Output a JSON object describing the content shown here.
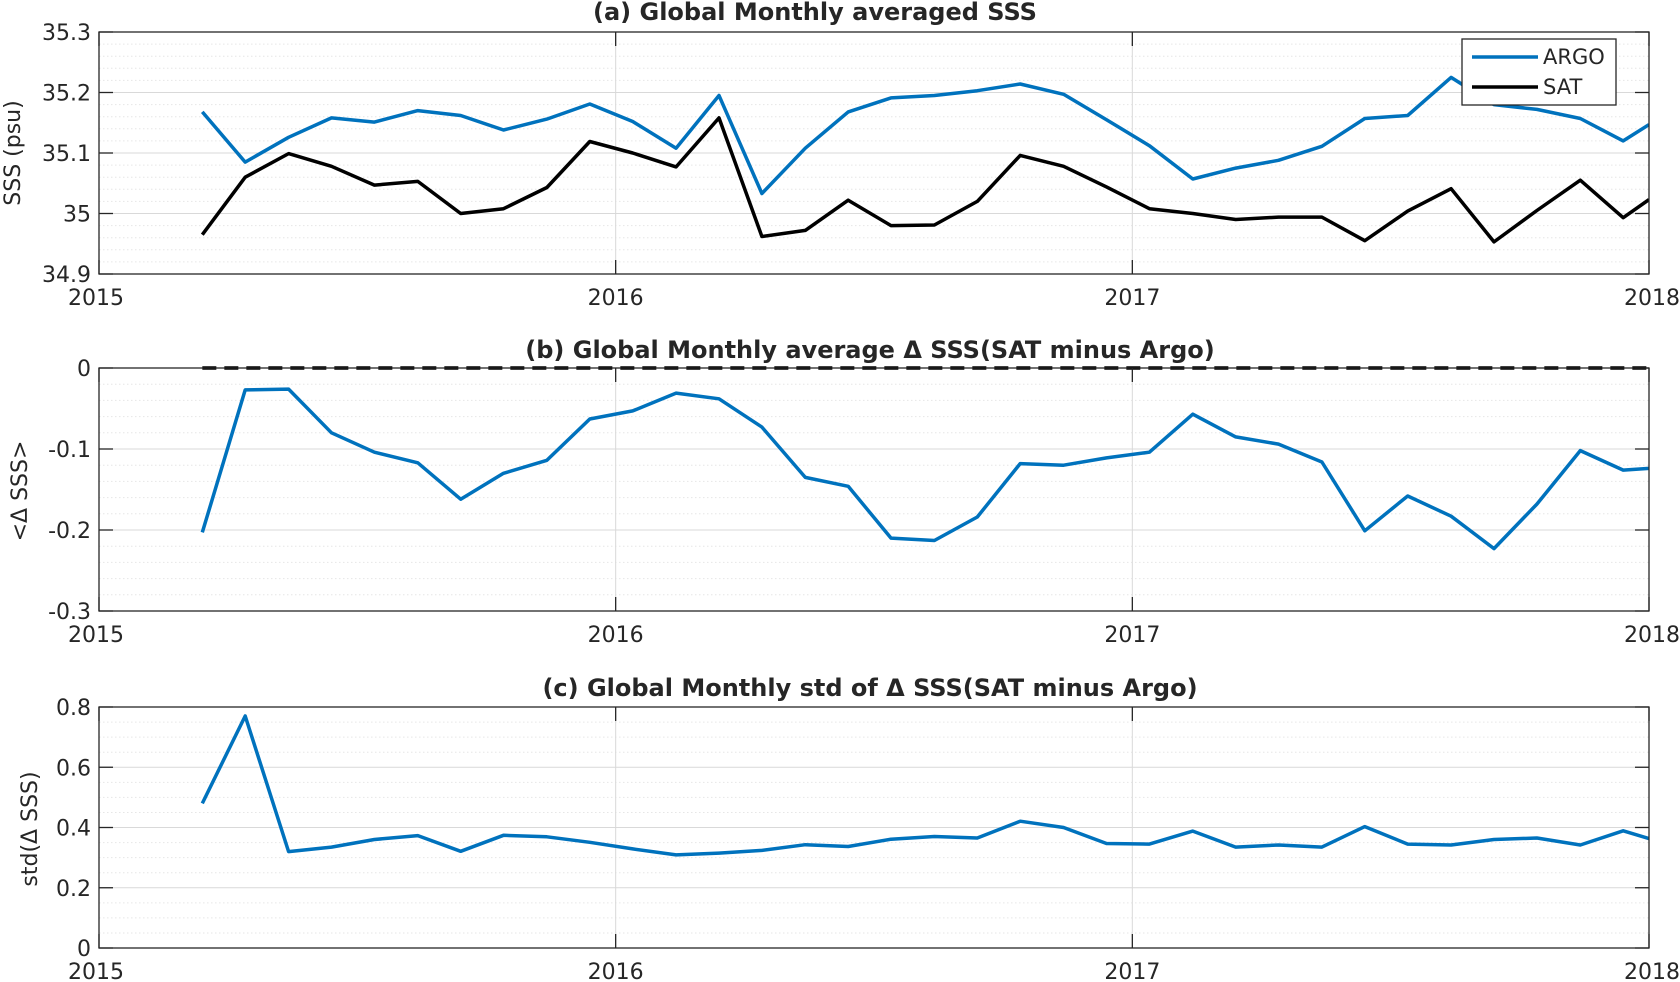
{
  "charts": [
    {
      "title": "(a) Global Monthly averaged SSS",
      "ylabel": "SSS (psu)",
      "ytick_labels": [
        "34.9",
        "35",
        "35.1",
        "35.2",
        "35.3"
      ],
      "xtick_labels": [
        "2015",
        "2016",
        "2017",
        "2018"
      ],
      "legend": [
        "ARGO",
        "SAT"
      ]
    },
    {
      "title": "(b) Global Monthly average Δ SSS(SAT minus Argo)",
      "ylabel": "<Δ SSS>",
      "ytick_labels": [
        "-0.3",
        "-0.2",
        "-0.1",
        "0"
      ],
      "xtick_labels": [
        "2015",
        "2016",
        "2017",
        "2018"
      ]
    },
    {
      "title": "(c) Global Monthly std of Δ SSS(SAT minus Argo)",
      "ylabel": "std(Δ SSS)",
      "ytick_labels": [
        "0",
        "0.2",
        "0.4",
        "0.6",
        "0.8"
      ],
      "xtick_labels": [
        "2015",
        "2016",
        "2017",
        "2018"
      ]
    }
  ],
  "colors": {
    "argo": "#0072bd",
    "sat": "#000000",
    "axis": "#262626",
    "grid_major": "#d9d9d9",
    "grid_minor": "#e6e6e6"
  },
  "chart_data": [
    {
      "type": "line",
      "title": "(a) Global Monthly averaged SSS",
      "xlabel": "",
      "ylabel": "SSS (psu)",
      "xlim": [
        2015,
        2018
      ],
      "ylim": [
        34.9,
        35.3
      ],
      "yticks": [
        34.9,
        35,
        35.1,
        35.2,
        35.3
      ],
      "xticks": [
        2015,
        2016,
        2017,
        2018
      ],
      "grid": true,
      "legend_position": "top-right",
      "x": [
        2015.2,
        2015.283,
        2015.367,
        2015.45,
        2015.533,
        2015.617,
        2015.7,
        2015.783,
        2015.867,
        2015.95,
        2016.033,
        2016.117,
        2016.2,
        2016.283,
        2016.367,
        2016.45,
        2016.533,
        2016.617,
        2016.7,
        2016.783,
        2016.867,
        2016.95,
        2017.033,
        2017.117,
        2017.2,
        2017.283,
        2017.367,
        2017.45,
        2017.533,
        2017.617,
        2017.7,
        2017.783,
        2017.867,
        2017.95,
        2018.0
      ],
      "series": [
        {
          "name": "ARGO",
          "color": "#0072bd",
          "values": [
            35.168,
            35.085,
            35.126,
            35.158,
            35.151,
            35.17,
            35.162,
            35.138,
            35.156,
            35.181,
            35.152,
            35.108,
            35.195,
            35.033,
            35.108,
            35.168,
            35.191,
            35.195,
            35.203,
            35.214,
            35.197,
            35.155,
            35.112,
            35.057,
            35.075,
            35.088,
            35.111,
            35.157,
            35.162,
            35.225,
            35.18,
            35.172,
            35.157,
            35.12,
            35.147
          ]
        },
        {
          "name": "SAT",
          "color": "#000000",
          "values": [
            34.965,
            35.06,
            35.099,
            35.078,
            35.047,
            35.053,
            35.0,
            35.008,
            35.043,
            35.119,
            35.1,
            35.077,
            35.158,
            34.962,
            34.972,
            35.022,
            34.98,
            34.981,
            35.02,
            35.096,
            35.078,
            35.044,
            35.008,
            35.0,
            34.99,
            34.994,
            34.994,
            34.955,
            35.004,
            35.041,
            34.953,
            35.005,
            35.055,
            34.993,
            35.023
          ]
        }
      ]
    },
    {
      "type": "line",
      "title": "(b) Global Monthly average Δ SSS(SAT minus Argo)",
      "xlabel": "",
      "ylabel": "<Δ SSS>",
      "xlim": [
        2015,
        2018
      ],
      "ylim": [
        -0.3,
        0
      ],
      "yticks": [
        -0.3,
        -0.2,
        -0.1,
        0
      ],
      "xticks": [
        2015,
        2016,
        2017,
        2018
      ],
      "grid": true,
      "reference_line": {
        "y": 0,
        "style": "dashed",
        "color": "#000000"
      },
      "x": [
        2015.2,
        2015.283,
        2015.367,
        2015.45,
        2015.533,
        2015.617,
        2015.7,
        2015.783,
        2015.867,
        2015.95,
        2016.033,
        2016.117,
        2016.2,
        2016.283,
        2016.367,
        2016.45,
        2016.533,
        2016.617,
        2016.7,
        2016.783,
        2016.867,
        2016.95,
        2017.033,
        2017.117,
        2017.2,
        2017.283,
        2017.367,
        2017.45,
        2017.533,
        2017.617,
        2017.7,
        2017.783,
        2017.867,
        2017.95,
        2018.0
      ],
      "series": [
        {
          "color": "#0072bd",
          "values": [
            -0.203,
            -0.027,
            -0.026,
            -0.08,
            -0.104,
            -0.117,
            -0.162,
            -0.13,
            -0.114,
            -0.063,
            -0.053,
            -0.031,
            -0.038,
            -0.073,
            -0.135,
            -0.146,
            -0.21,
            -0.213,
            -0.184,
            -0.118,
            -0.12,
            -0.111,
            -0.104,
            -0.057,
            -0.085,
            -0.094,
            -0.116,
            -0.201,
            -0.158,
            -0.183,
            -0.223,
            -0.168,
            -0.102,
            -0.126,
            -0.124
          ]
        }
      ]
    },
    {
      "type": "line",
      "title": "(c) Global Monthly std of Δ SSS(SAT minus Argo)",
      "xlabel": "",
      "ylabel": "std(Δ SSS)",
      "xlim": [
        2015,
        2018
      ],
      "ylim": [
        0,
        0.8
      ],
      "yticks": [
        0,
        0.2,
        0.4,
        0.6,
        0.8
      ],
      "xticks": [
        2015,
        2016,
        2017,
        2018
      ],
      "grid": true,
      "x": [
        2015.2,
        2015.283,
        2015.367,
        2015.45,
        2015.533,
        2015.617,
        2015.7,
        2015.783,
        2015.867,
        2015.95,
        2016.033,
        2016.117,
        2016.2,
        2016.283,
        2016.367,
        2016.45,
        2016.533,
        2016.617,
        2016.7,
        2016.783,
        2016.867,
        2016.95,
        2017.033,
        2017.117,
        2017.2,
        2017.283,
        2017.367,
        2017.45,
        2017.533,
        2017.617,
        2017.7,
        2017.783,
        2017.867,
        2017.95,
        2018.0
      ],
      "series": [
        {
          "color": "#0072bd",
          "values": [
            0.48,
            0.77,
            0.32,
            0.335,
            0.36,
            0.373,
            0.321,
            0.374,
            0.369,
            0.351,
            0.329,
            0.309,
            0.315,
            0.324,
            0.343,
            0.337,
            0.361,
            0.37,
            0.365,
            0.421,
            0.4,
            0.347,
            0.345,
            0.388,
            0.335,
            0.342,
            0.335,
            0.403,
            0.345,
            0.342,
            0.36,
            0.365,
            0.342,
            0.389,
            0.363
          ]
        }
      ]
    }
  ]
}
